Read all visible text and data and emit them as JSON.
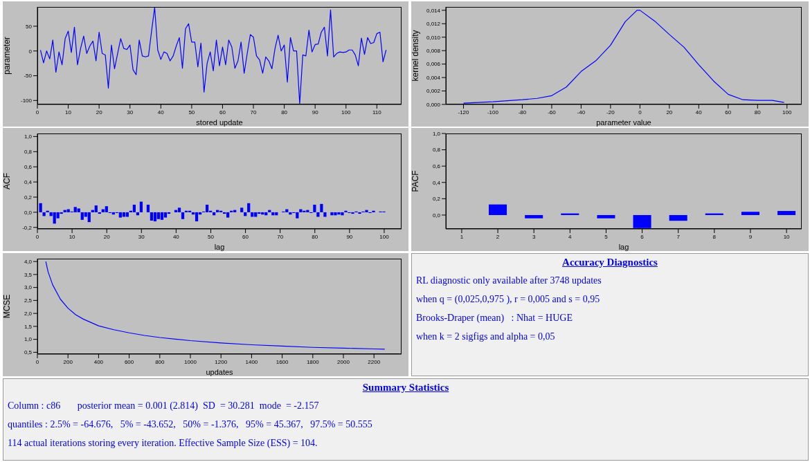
{
  "chart_data": [
    {
      "type": "line",
      "xlabel": "stored update",
      "ylabel": "parameter",
      "x": [
        1,
        2,
        3,
        4,
        5,
        6,
        7,
        8,
        9,
        10,
        11,
        12,
        13,
        14,
        15,
        16,
        17,
        18,
        19,
        20,
        21,
        22,
        23,
        24,
        25,
        26,
        27,
        28,
        29,
        30,
        31,
        32,
        33,
        34,
        35,
        36,
        37,
        38,
        39,
        40,
        41,
        42,
        43,
        44,
        45,
        46,
        47,
        48,
        49,
        50,
        51,
        52,
        53,
        54,
        55,
        56,
        57,
        58,
        59,
        60,
        61,
        62,
        63,
        64,
        65,
        66,
        67,
        68,
        69,
        70,
        71,
        72,
        73,
        74,
        75,
        76,
        77,
        78,
        79,
        80,
        81,
        82,
        83,
        84,
        85,
        86,
        87,
        88,
        89,
        90,
        91,
        92,
        93,
        94,
        95,
        96,
        97,
        98,
        99,
        100,
        101,
        102,
        103,
        104,
        105,
        106,
        107,
        108,
        109,
        110,
        111,
        112,
        113
      ],
      "series": [
        {
          "color": "#0000ff",
          "values": [
            2,
            -24,
            0,
            -16,
            22,
            -43,
            -2,
            -28,
            25,
            40,
            -3,
            48,
            -28,
            5,
            30,
            -5,
            10,
            20,
            -20,
            38,
            -5,
            -8,
            -75,
            12,
            -36,
            -5,
            25,
            5,
            3,
            12,
            -38,
            -48,
            22,
            -10,
            -12,
            -10,
            40,
            88,
            2,
            -17,
            -2,
            -5,
            -20,
            -10,
            10,
            27,
            -35,
            45,
            55,
            18,
            18,
            -32,
            16,
            -83,
            -25,
            -2,
            -40,
            22,
            -30,
            8,
            -28,
            22,
            8,
            -35,
            -20,
            18,
            -45,
            -5,
            33,
            28,
            -10,
            -18,
            -45,
            -12,
            -20,
            -36,
            5,
            32,
            0,
            12,
            -63,
            27,
            0,
            0,
            -107,
            -8,
            -10,
            42,
            -2,
            13,
            14,
            38,
            48,
            -10,
            83,
            -12,
            -5,
            -2,
            -3,
            -2,
            2,
            2,
            -8,
            -30,
            26,
            -7,
            27,
            15,
            17,
            35,
            38,
            -22,
            2
          ]
        }
      ],
      "xlim": [
        0,
        118
      ],
      "xticks": [
        0,
        10,
        20,
        30,
        40,
        50,
        60,
        70,
        80,
        90,
        100,
        110
      ],
      "ylim": [
        -108,
        89
      ],
      "yticks": [
        -100,
        -50,
        0,
        50
      ]
    },
    {
      "type": "line",
      "xlabel": "parameter value",
      "ylabel": "kernel density",
      "x": [
        -120,
        -100,
        -80,
        -70,
        -60,
        -50,
        -40,
        -30,
        -20,
        -10,
        -2,
        0,
        10,
        20,
        30,
        40,
        50,
        60,
        70,
        80,
        90,
        98
      ],
      "series": [
        {
          "color": "#0000ff",
          "values": [
            0.0002,
            0.0004,
            0.0007,
            0.0009,
            0.0013,
            0.0026,
            0.0049,
            0.0065,
            0.0088,
            0.0123,
            0.014,
            0.014,
            0.0124,
            0.0104,
            0.0085,
            0.0059,
            0.0035,
            0.0015,
            0.0007,
            0.0006,
            0.0006,
            0.0003
          ]
        }
      ],
      "xlim": [
        -132,
        110
      ],
      "xticks": [
        -120,
        -100,
        -80,
        -60,
        -40,
        -20,
        0,
        20,
        40,
        60,
        80,
        100
      ],
      "ylim": [
        0,
        0.0145
      ],
      "yticks": [
        {
          "value": 0,
          "label": "0,000"
        },
        {
          "value": 0.002,
          "label": "0,002"
        },
        {
          "value": 0.004,
          "label": "0,004"
        },
        {
          "value": 0.006,
          "label": "0,006"
        },
        {
          "value": 0.008,
          "label": "0,008"
        },
        {
          "value": 0.01,
          "label": "0,010"
        },
        {
          "value": 0.012,
          "label": "0,012"
        },
        {
          "value": 0.014,
          "label": "0,014"
        }
      ]
    },
    {
      "type": "bar",
      "xlabel": "lag",
      "ylabel": "ACF",
      "x": [
        1,
        2,
        3,
        4,
        5,
        6,
        7,
        8,
        9,
        10,
        11,
        12,
        13,
        14,
        15,
        16,
        17,
        18,
        19,
        20,
        21,
        22,
        23,
        24,
        25,
        26,
        27,
        28,
        29,
        30,
        31,
        32,
        33,
        34,
        35,
        36,
        37,
        38,
        39,
        40,
        41,
        42,
        43,
        44,
        45,
        46,
        47,
        48,
        49,
        50,
        51,
        52,
        53,
        54,
        55,
        56,
        57,
        58,
        59,
        60,
        61,
        62,
        63,
        64,
        65,
        66,
        67,
        68,
        69,
        70,
        71,
        72,
        73,
        74,
        75,
        76,
        77,
        78,
        79,
        80,
        81,
        82,
        83,
        84,
        85,
        86,
        87,
        88,
        89,
        90,
        91,
        92,
        93,
        94,
        95,
        96,
        97,
        98,
        99,
        100
      ],
      "series": [
        {
          "color": "#0000ff",
          "values": [
            0.12,
            -0.05,
            0.02,
            -0.05,
            -0.15,
            -0.08,
            -0.02,
            0.03,
            0.04,
            0.01,
            0.07,
            0.05,
            -0.1,
            -0.06,
            -0.13,
            0.03,
            0.09,
            -0.02,
            0.04,
            0.08,
            -0.01,
            -0.03,
            -0.01,
            -0.07,
            -0.06,
            -0.06,
            0.02,
            0.1,
            -0.04,
            0.14,
            0,
            0.1,
            -0.11,
            -0.12,
            -0.09,
            -0.1,
            -0.07,
            -0.02,
            0,
            0.03,
            0.06,
            -0.09,
            0.02,
            0.02,
            -0.03,
            -0.12,
            -0.03,
            0.01,
            0.1,
            0.02,
            -0.04,
            0.03,
            0.02,
            -0.02,
            -0.07,
            0.02,
            0.03,
            0,
            0.06,
            -0.05,
            0.12,
            -0.06,
            -0.06,
            -0.02,
            -0.03,
            -0.04,
            0.03,
            -0.04,
            -0.04,
            0,
            0.01,
            0.04,
            -0.03,
            -0.01,
            -0.08,
            0.04,
            0.02,
            0.03,
            -0.01,
            0.1,
            -0.06,
            0.11,
            -0.06,
            0,
            -0.04,
            -0.04,
            -0.03,
            -0.04,
            0.02,
            -0.01,
            -0.02,
            0.01,
            -0.02,
            0.01,
            0.03,
            -0.01,
            0.02,
            0,
            0.01,
            0.01
          ]
        }
      ],
      "xlim": [
        0,
        105
      ],
      "xticks": [
        0,
        10,
        20,
        30,
        40,
        50,
        60,
        70,
        80,
        90,
        100
      ],
      "ylim": [
        -0.22,
        1.04
      ],
      "yticks": [
        {
          "value": -0.2,
          "label": "-0,2"
        },
        {
          "value": 0,
          "label": "0,0"
        },
        {
          "value": 0.2,
          "label": "0,2"
        },
        {
          "value": 0.4,
          "label": "0,4"
        },
        {
          "value": 0.6,
          "label": "0,6"
        },
        {
          "value": 0.8,
          "label": "0,8"
        },
        {
          "value": 1,
          "label": "1,0"
        }
      ]
    },
    {
      "type": "bar",
      "xlabel": "lag",
      "ylabel": "PACF",
      "x": [
        2,
        3,
        4,
        5,
        6,
        7,
        8,
        9,
        10
      ],
      "series": [
        {
          "color": "#0000ff",
          "values": [
            0.13,
            -0.04,
            0.02,
            -0.04,
            -0.16,
            -0.07,
            0.02,
            0.04,
            0.05
          ]
        }
      ],
      "xlim": [
        0.56,
        10.42
      ],
      "xticks": [
        1,
        2,
        3,
        4,
        5,
        6,
        7,
        8,
        9,
        10
      ],
      "ylim": [
        -0.17,
        1
      ],
      "yticks": [
        {
          "value": 0,
          "label": "0,0"
        },
        {
          "value": 0.2,
          "label": "0,2"
        },
        {
          "value": 0.4,
          "label": "0,4"
        },
        {
          "value": 0.6,
          "label": "0,6"
        },
        {
          "value": 0.8,
          "label": "0,8"
        },
        {
          "value": 1,
          "label": "1,0"
        }
      ]
    },
    {
      "type": "line",
      "xlabel": "updates",
      "ylabel": "MCSE",
      "x": [
        55,
        70,
        100,
        150,
        200,
        250,
        300,
        400,
        500,
        600,
        700,
        800,
        1000,
        1200,
        1400,
        1600,
        1800,
        2000,
        2200,
        2270
      ],
      "series": [
        {
          "color": "#0000ff",
          "values": [
            4,
            3.6,
            3.1,
            2.55,
            2.2,
            1.95,
            1.78,
            1.52,
            1.37,
            1.25,
            1.15,
            1.07,
            0.95,
            0.86,
            0.79,
            0.74,
            0.69,
            0.66,
            0.63,
            0.62
          ]
        }
      ],
      "xlim": [
        0,
        2380
      ],
      "xticks": [
        0,
        200,
        400,
        600,
        800,
        1000,
        1200,
        1400,
        1600,
        1800,
        2000,
        2200
      ],
      "ylim": [
        0.43,
        4.11
      ],
      "yticks": [
        {
          "value": 0.5,
          "label": "0,5"
        },
        {
          "value": 1,
          "label": "1,0"
        },
        {
          "value": 1.5,
          "label": "1,5"
        },
        {
          "value": 2,
          "label": "2,0"
        },
        {
          "value": 2.5,
          "label": "2,5"
        },
        {
          "value": 3,
          "label": "3,0"
        },
        {
          "value": 3.5,
          "label": "3,5"
        },
        {
          "value": 4,
          "label": "4,0"
        }
      ]
    },
    {
      "type": "other",
      "title": "Accuracy Diagnostics",
      "annotations": [
        "RL diagnostic only available after 3748 updates",
        "when q = (0,025,0,975 ), r = 0,005 and s = 0,95",
        "Brooks-Draper (mean)   : Nhat = HUGE",
        "when k = 2 sigfigs and alpha = 0,05"
      ]
    },
    {
      "type": "other",
      "title": "Summary Statistics",
      "annotations": [
        "Column : c86       posterior mean = 0.001 (2.814)  SD  = 30.281  mode  = -2.157",
        "quantiles : 2.5% = -64.676,   5% = -43.652,   50% = -1.376,   95% = 45.367,   97.5% = 50.555",
        "114 actual iterations storing every iteration. Effective Sample Size (ESS) = 104."
      ]
    }
  ]
}
